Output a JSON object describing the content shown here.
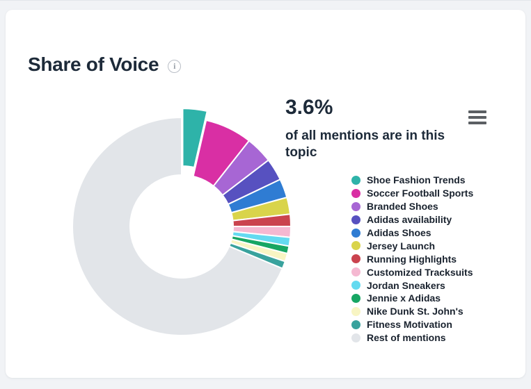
{
  "card": {
    "title": "Share of Voice"
  },
  "icons": {
    "info_glyph": "i"
  },
  "stat": {
    "value": "3.6%",
    "caption": "of all mentions are in this topic"
  },
  "colors": {
    "page_background": "#f1f3f6",
    "card_background": "#ffffff",
    "heading_text": "#1d2a39",
    "legend_text": "#19222e",
    "slice_border": "#ffffff",
    "menu_icon": "#5b5f63"
  },
  "chart_data": {
    "type": "pie",
    "title": "Share of Voice",
    "annotation": {
      "value": "3.6%",
      "text": "of all mentions are in this topic"
    },
    "inner_radius_ratio": 0.47,
    "start_angle_deg": 0,
    "legend_position": "right",
    "grid": false,
    "slices": [
      {
        "label": "Shoe Fashion Trends",
        "value_pct": 3.6,
        "color": "#2eb3a9",
        "sliced": true
      },
      {
        "label": "Soccer Football Sports",
        "value_pct": 7.0,
        "color": "#d92fa4",
        "sliced": false
      },
      {
        "label": "Branded Shoes",
        "value_pct": 4.0,
        "color": "#a766d4",
        "sliced": false
      },
      {
        "label": "Adidas availability",
        "value_pct": 3.3,
        "color": "#5751c0",
        "sliced": false
      },
      {
        "label": "Adidas Shoes",
        "value_pct": 2.8,
        "color": "#2f7cd3",
        "sliced": false
      },
      {
        "label": "Jersey Launch",
        "value_pct": 2.5,
        "color": "#d9d44b",
        "sliced": false
      },
      {
        "label": "Running Highlights",
        "value_pct": 1.8,
        "color": "#ca434e",
        "sliced": false
      },
      {
        "label": "Customized Tracksuits",
        "value_pct": 1.6,
        "color": "#f5b8d1",
        "sliced": false
      },
      {
        "label": "Jordan Sneakers",
        "value_pct": 1.3,
        "color": "#64daf0",
        "sliced": false
      },
      {
        "label": "Jennie x Adidas",
        "value_pct": 1.1,
        "color": "#17a663",
        "sliced": false
      },
      {
        "label": "Nike Dunk St. John's",
        "value_pct": 1.2,
        "color": "#f8f5c3",
        "sliced": false
      },
      {
        "label": "Fitness Motivation",
        "value_pct": 1.1,
        "color": "#39a29d",
        "sliced": false
      },
      {
        "label": "Rest of mentions",
        "value_pct": 68.7,
        "color": "#e2e5e9",
        "sliced": false
      }
    ]
  }
}
